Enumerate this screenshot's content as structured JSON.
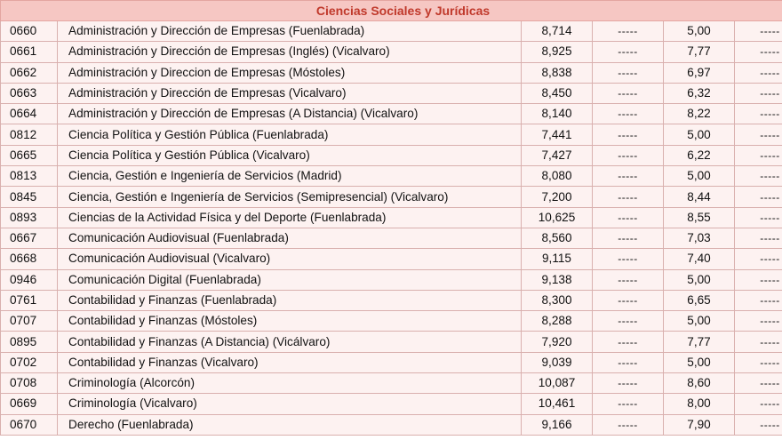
{
  "section_title": "Ciencias Sociales y Jurídicas",
  "rows": [
    {
      "code": "0660",
      "name": "Administración y Dirección de Empresas (Fuenlabrada)",
      "grade1": "8,714",
      "dash1": "-----",
      "grade2": "5,00",
      "dash2": "-----"
    },
    {
      "code": "0661",
      "name": "Administración y Dirección de Empresas (Inglés) (Vicalvaro)",
      "grade1": "8,925",
      "dash1": "-----",
      "grade2": "7,77",
      "dash2": "-----"
    },
    {
      "code": "0662",
      "name": "Administración y Direccion de Empresas (Móstoles)",
      "grade1": "8,838",
      "dash1": "-----",
      "grade2": "6,97",
      "dash2": "-----"
    },
    {
      "code": "0663",
      "name": "Administración y Dirección de Empresas (Vicalvaro)",
      "grade1": "8,450",
      "dash1": "-----",
      "grade2": "6,32",
      "dash2": "-----"
    },
    {
      "code": "0664",
      "name": "Administración y Dirección de Empresas (A Distancia) (Vicalvaro)",
      "grade1": "8,140",
      "dash1": "-----",
      "grade2": "8,22",
      "dash2": "-----"
    },
    {
      "code": "0812",
      "name": "Ciencia Política y Gestión Pública (Fuenlabrada)",
      "grade1": "7,441",
      "dash1": "-----",
      "grade2": "5,00",
      "dash2": "-----"
    },
    {
      "code": "0665",
      "name": "Ciencia Política y Gestión Pública (Vicalvaro)",
      "grade1": "7,427",
      "dash1": "-----",
      "grade2": "6,22",
      "dash2": "-----"
    },
    {
      "code": "0813",
      "name": "Ciencia, Gestión e Ingeniería de Servicios (Madrid)",
      "grade1": "8,080",
      "dash1": "-----",
      "grade2": "5,00",
      "dash2": "-----"
    },
    {
      "code": "0845",
      "name": "Ciencia, Gestión e Ingeniería de Servicios (Semipresencial) (Vicalvaro)",
      "grade1": "7,200",
      "dash1": "-----",
      "grade2": "8,44",
      "dash2": "-----"
    },
    {
      "code": "0893",
      "name": "Ciencias de la Actividad Física y del Deporte (Fuenlabrada)",
      "grade1": "10,625",
      "dash1": "-----",
      "grade2": "8,55",
      "dash2": "-----"
    },
    {
      "code": "0667",
      "name": "Comunicación Audiovisual (Fuenlabrada)",
      "grade1": "8,560",
      "dash1": "-----",
      "grade2": "7,03",
      "dash2": "-----"
    },
    {
      "code": "0668",
      "name": "Comunicación Audiovisual (Vicalvaro)",
      "grade1": "9,115",
      "dash1": "-----",
      "grade2": "7,40",
      "dash2": "-----"
    },
    {
      "code": "0946",
      "name": "Comunicación Digital (Fuenlabrada)",
      "grade1": "9,138",
      "dash1": "-----",
      "grade2": "5,00",
      "dash2": "-----"
    },
    {
      "code": "0761",
      "name": "Contabilidad y Finanzas (Fuenlabrada)",
      "grade1": "8,300",
      "dash1": "-----",
      "grade2": "6,65",
      "dash2": "-----"
    },
    {
      "code": "0707",
      "name": "Contabilidad y Finanzas (Móstoles)",
      "grade1": "8,288",
      "dash1": "-----",
      "grade2": "5,00",
      "dash2": "-----"
    },
    {
      "code": "0895",
      "name": "Contabilidad y Finanzas (A Distancia) (Vicálvaro)",
      "grade1": "7,920",
      "dash1": "-----",
      "grade2": "7,77",
      "dash2": "-----"
    },
    {
      "code": "0702",
      "name": "Contabilidad y Finanzas (Vicalvaro)",
      "grade1": "9,039",
      "dash1": "-----",
      "grade2": "5,00",
      "dash2": "-----"
    },
    {
      "code": "0708",
      "name": "Criminología (Alcorcón)",
      "grade1": "10,087",
      "dash1": "-----",
      "grade2": "8,60",
      "dash2": "-----"
    },
    {
      "code": "0669",
      "name": "Criminología (Vicalvaro)",
      "grade1": "10,461",
      "dash1": "-----",
      "grade2": "8,00",
      "dash2": "-----"
    },
    {
      "code": "0670",
      "name": "Derecho (Fuenlabrada)",
      "grade1": "9,166",
      "dash1": "-----",
      "grade2": "7,90",
      "dash2": "-----"
    }
  ]
}
